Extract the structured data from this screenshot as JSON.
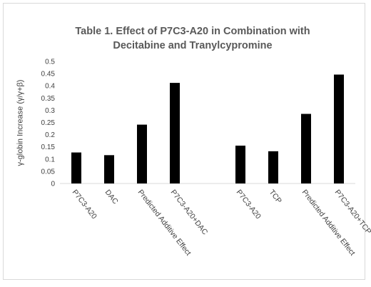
{
  "chart_data": {
    "type": "bar",
    "title": "Table 1. Effect of P7C3-A20 in Combination with Decitabine and Tranylcypromine",
    "title_lines": [
      "Table 1. Effect of P7C3-A20 in Combination with",
      "Decitabine and Tranylcypromine"
    ],
    "ylabel": "γ-globin Increase (γ/γ+β)",
    "xlabel": "",
    "ylim": [
      0,
      0.5
    ],
    "yticks": [
      "0",
      "0.05",
      "0.1",
      "0.15",
      "0.2",
      "0.25",
      "0.3",
      "0.35",
      "0.4",
      "0.45",
      "0.5"
    ],
    "grid": false,
    "categories": [
      "P7C3-A20",
      "DAC",
      "Predicted Additive Effect",
      "P7C3-A20+DAC",
      "",
      "P7C3-A20",
      "TCP",
      "Predicted Additive Effect",
      "P7C3-A20+TCP"
    ],
    "values": [
      0.127,
      0.116,
      0.241,
      0.412,
      null,
      0.155,
      0.132,
      0.285,
      0.446
    ],
    "bar_color": "#000000"
  }
}
